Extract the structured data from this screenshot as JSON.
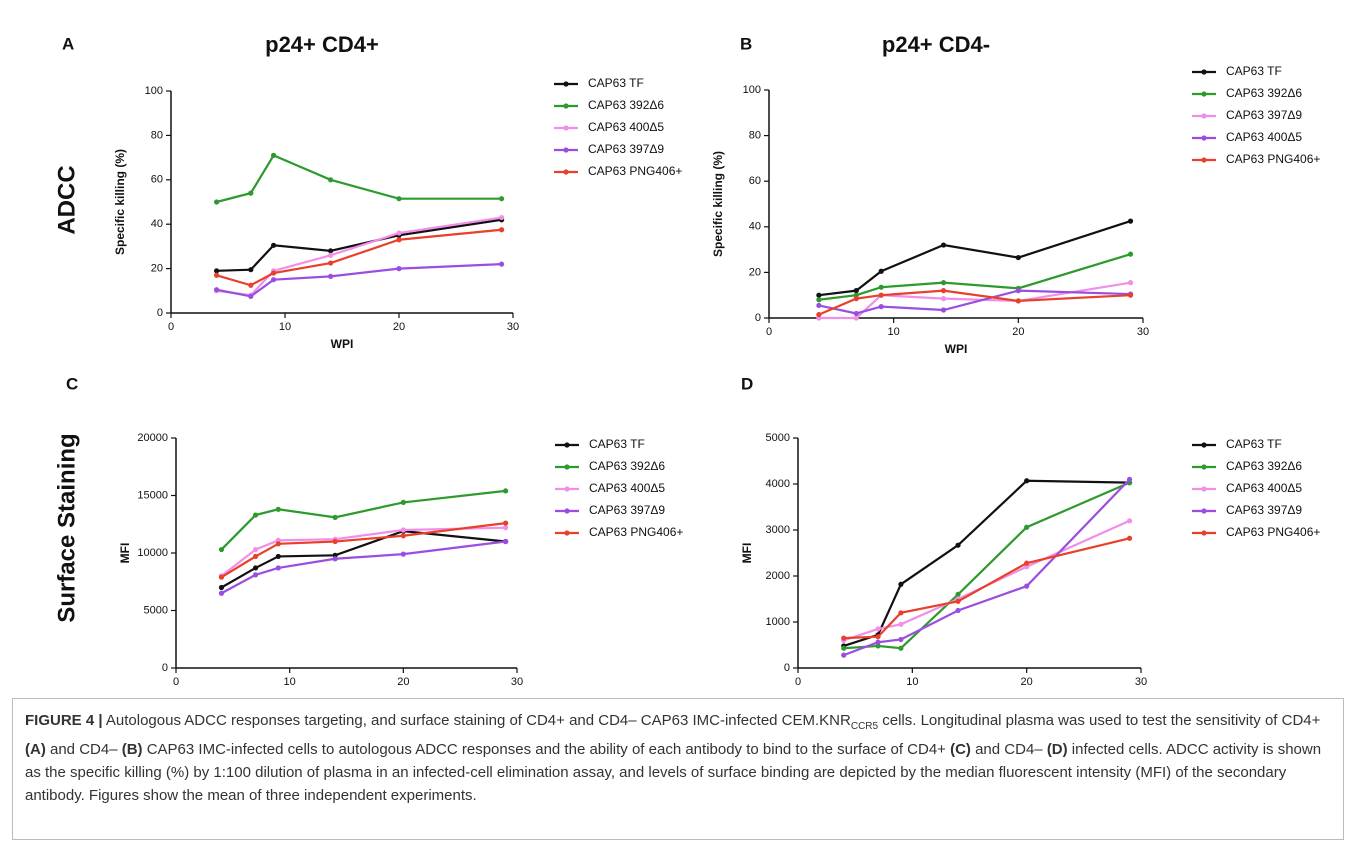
{
  "row_labels": [
    "ADCC",
    "Surface Staining"
  ],
  "chart_data": [
    {
      "type": "line",
      "panel_label": "A",
      "title": "p24+ CD4+",
      "x_label": "WPI",
      "y_label": "Specific killing (%)",
      "x": [
        4,
        7,
        9,
        14,
        20,
        29
      ],
      "xlim": [
        0,
        30
      ],
      "xticks": [
        0,
        10,
        20,
        30
      ],
      "ylim": [
        0,
        100
      ],
      "yticks": [
        0,
        20,
        40,
        60,
        80,
        100
      ],
      "grid": false,
      "series": [
        {
          "name": "CAP63 TF",
          "color": "#111111",
          "values": [
            19,
            19.5,
            30.5,
            28,
            35,
            42
          ]
        },
        {
          "name": "CAP63 392Δ6",
          "color": "#2e9a2e",
          "values": [
            50,
            54,
            71,
            60,
            51.5,
            51.5
          ]
        },
        {
          "name": "CAP63 400Δ5",
          "color": "#f08ee8",
          "values": [
            10,
            8,
            19,
            26,
            36,
            43
          ]
        },
        {
          "name": "CAP63 397Δ9",
          "color": "#9b4de0",
          "values": [
            10.5,
            7.5,
            15,
            16.5,
            20,
            22
          ]
        },
        {
          "name": "CAP63 PNG406+",
          "color": "#e8402a",
          "values": [
            17,
            12.5,
            18,
            22.5,
            33,
            37.5
          ]
        }
      ]
    },
    {
      "type": "line",
      "panel_label": "B",
      "title": "p24+ CD4-",
      "x_label": "WPI",
      "y_label": "Specific killing (%)",
      "x": [
        4,
        7,
        9,
        14,
        20,
        29
      ],
      "xlim": [
        0,
        30
      ],
      "xticks": [
        0,
        10,
        20,
        30
      ],
      "ylim": [
        0,
        100
      ],
      "yticks": [
        0,
        20,
        40,
        60,
        80,
        100
      ],
      "grid": false,
      "series": [
        {
          "name": "CAP63 TF",
          "color": "#111111",
          "values": [
            10,
            12,
            20.5,
            32,
            26.5,
            42.5
          ]
        },
        {
          "name": "CAP63 392Δ6",
          "color": "#2e9a2e",
          "values": [
            8,
            10,
            13.5,
            15.5,
            13,
            28
          ]
        },
        {
          "name": "CAP63 397Δ9",
          "color": "#f08ee8",
          "values": [
            0,
            0,
            10,
            8.5,
            7.5,
            15.5
          ]
        },
        {
          "name": "CAP63 400Δ5",
          "color": "#9b4de0",
          "values": [
            5.5,
            2,
            5,
            3.5,
            12,
            10.5
          ]
        },
        {
          "name": "CAP63 PNG406+",
          "color": "#e8402a",
          "values": [
            1.5,
            8.5,
            10,
            12,
            7.5,
            10
          ]
        }
      ]
    },
    {
      "type": "line",
      "panel_label": "C",
      "x_label": "WPI",
      "y_label": "MFI",
      "x": [
        4,
        7,
        9,
        14,
        20,
        29
      ],
      "xlim": [
        0,
        30
      ],
      "xticks": [
        0,
        10,
        20,
        30
      ],
      "ylim": [
        0,
        20000
      ],
      "yticks": [
        0,
        5000,
        10000,
        15000,
        20000
      ],
      "grid": false,
      "series": [
        {
          "name": "CAP63 TF",
          "color": "#111111",
          "values": [
            7000,
            8700,
            9700,
            9800,
            11900,
            11000
          ]
        },
        {
          "name": "CAP63 392Δ6",
          "color": "#2e9a2e",
          "values": [
            10300,
            13300,
            13800,
            13100,
            14400,
            15400
          ]
        },
        {
          "name": "CAP63 400Δ5",
          "color": "#f08ee8",
          "values": [
            8000,
            10300,
            11100,
            11200,
            12000,
            12200
          ]
        },
        {
          "name": "CAP63 397Δ9",
          "color": "#9b4de0",
          "values": [
            6500,
            8100,
            8700,
            9500,
            9900,
            11000
          ]
        },
        {
          "name": "CAP63 PNG406+",
          "color": "#e8402a",
          "values": [
            7900,
            9700,
            10800,
            11000,
            11500,
            12600
          ]
        }
      ]
    },
    {
      "type": "line",
      "panel_label": "D",
      "x_label": "WPI",
      "y_label": "MFI",
      "x": [
        4,
        7,
        9,
        14,
        20,
        29
      ],
      "xlim": [
        0,
        30
      ],
      "xticks": [
        0,
        10,
        20,
        30
      ],
      "ylim": [
        0,
        5000
      ],
      "yticks": [
        0,
        1000,
        2000,
        3000,
        4000,
        5000
      ],
      "grid": false,
      "series": [
        {
          "name": "CAP63 TF",
          "color": "#111111",
          "values": [
            480,
            720,
            1820,
            2670,
            4070,
            4030
          ]
        },
        {
          "name": "CAP63 392Δ6",
          "color": "#2e9a2e",
          "values": [
            430,
            480,
            430,
            1600,
            3060,
            4030
          ]
        },
        {
          "name": "CAP63 400Δ5",
          "color": "#f08ee8",
          "values": [
            600,
            850,
            950,
            1500,
            2200,
            3200
          ]
        },
        {
          "name": "CAP63 397Δ9",
          "color": "#9b4de0",
          "values": [
            280,
            560,
            620,
            1250,
            1780,
            4100
          ]
        },
        {
          "name": "CAP63 PNG406+",
          "color": "#e8402a",
          "values": [
            650,
            680,
            1200,
            1450,
            2280,
            2820
          ]
        }
      ]
    }
  ],
  "caption": [
    {
      "text": "FIGURE 4 |",
      "style": "bold"
    },
    {
      "text": " Autologous ADCC responses targeting, and surface staining of CD4+ and CD4– CAP63 IMC-infected CEM.KNR",
      "style": "normal"
    },
    {
      "text": "CCR5",
      "style": "sub"
    },
    {
      "text": " cells. Longitudinal plasma was used to test the sensitivity of CD4+ ",
      "style": "normal"
    },
    {
      "text": "(A)",
      "style": "bold"
    },
    {
      "text": " and CD4– ",
      "style": "normal"
    },
    {
      "text": "(B)",
      "style": "bold"
    },
    {
      "text": " CAP63 IMC-infected cells to autologous ADCC responses and the ability of each antibody to bind to the surface of CD4+ ",
      "style": "normal"
    },
    {
      "text": "(C)",
      "style": "bold"
    },
    {
      "text": " and CD4– ",
      "style": "normal"
    },
    {
      "text": "(D)",
      "style": "bold"
    },
    {
      "text": " infected cells. ADCC activity is shown as the specific killing (%) by 1:100 dilution of plasma in an infected-cell elimination assay, and levels of surface binding are depicted by the median fluorescent intensity (MFI) of the secondary antibody. Figures show the mean of three independent experiments.",
      "style": "normal"
    }
  ]
}
